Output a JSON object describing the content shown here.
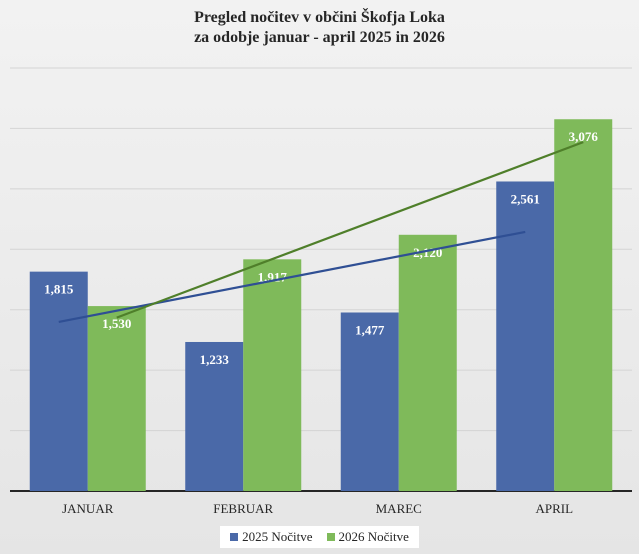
{
  "chart_data": {
    "type": "bar",
    "title_lines": [
      "Pregled nočitev v občini Škofja Loka",
      "za odobje januar - april 2025 in 2026"
    ],
    "categories": [
      "JANUAR",
      "FEBRUAR",
      "MAREC",
      "APRIL"
    ],
    "series": [
      {
        "name": "2025 Nočitve",
        "values": [
          1815,
          1233,
          1477,
          2561
        ],
        "labels": [
          "1,815",
          "1,233",
          "1,477",
          "2,561"
        ],
        "color": "#4a69a8"
      },
      {
        "name": "2026 Nočitve",
        "values": [
          1530,
          1917,
          2120,
          3076
        ],
        "labels": [
          "1,530",
          "1,917",
          "2,120",
          "3,076"
        ],
        "color": "#7fba5a"
      }
    ],
    "trendlines": [
      {
        "series": "2025 Nočitve",
        "type": "linear",
        "color": "#2f4f94"
      },
      {
        "series": "2026 Nočitve",
        "type": "linear",
        "color": "#4f7f2a"
      }
    ],
    "ylim": [
      0,
      3500
    ],
    "y_axis_labels_visible": false,
    "grid": true,
    "legend_position": "bottom"
  }
}
